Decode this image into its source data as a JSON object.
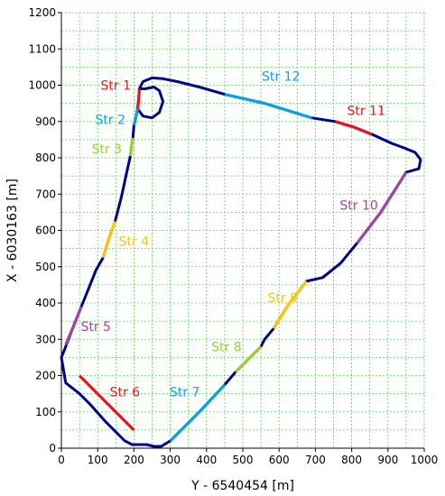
{
  "chart_data": {
    "type": "line",
    "title": "",
    "xlabel": "Y - 6540454 [m]",
    "ylabel": "X - 6030163 [m]",
    "xlim": [
      0,
      1000
    ],
    "ylim": [
      0,
      1200
    ],
    "x_ticks": [
      0,
      100,
      200,
      300,
      400,
      500,
      600,
      700,
      800,
      900,
      1000
    ],
    "y_ticks": [
      0,
      100,
      200,
      300,
      400,
      500,
      600,
      700,
      800,
      900,
      1000,
      1100,
      1200
    ],
    "x_tick_labels": [
      "0",
      "100",
      "200",
      "300",
      "400",
      "500",
      "600",
      "700",
      "800",
      "900",
      "1000"
    ],
    "y_tick_labels": [
      "0",
      "100",
      "200",
      "300",
      "400",
      "500",
      "600",
      "700",
      "800",
      "900",
      "1000",
      "1100",
      "1200"
    ],
    "grid": true,
    "colors": {
      "track": "#00008b",
      "red": "#e8141e",
      "blue": "#0aa0e6",
      "green": "#9acd32",
      "yellow": "#f5c800",
      "purple": "#a0469b"
    },
    "stretches": [
      {
        "label": "Str 1",
        "color": "#e8141e",
        "label_x": 150,
        "label_y": 1000,
        "points": [
          [
            215,
            990
          ],
          [
            213,
            960
          ],
          [
            210,
            935
          ]
        ]
      },
      {
        "label": "Str 2",
        "color": "#0aa0e6",
        "label_x": 135,
        "label_y": 905,
        "points": [
          [
            210,
            935
          ],
          [
            205,
            910
          ],
          [
            200,
            890
          ]
        ]
      },
      {
        "label": "Str 3",
        "color": "#9acd32",
        "label_x": 125,
        "label_y": 825,
        "points": [
          [
            197,
            855
          ],
          [
            193,
            830
          ],
          [
            190,
            805
          ]
        ]
      },
      {
        "label": "Str 4",
        "color": "#f5c800",
        "label_x": 200,
        "label_y": 570,
        "points": [
          [
            148,
            625
          ],
          [
            130,
            575
          ],
          [
            115,
            525
          ]
        ]
      },
      {
        "label": "Str 5",
        "color": "#a0469b",
        "label_x": 95,
        "label_y": 335,
        "points": [
          [
            55,
            390
          ],
          [
            35,
            340
          ],
          [
            12,
            285
          ]
        ]
      },
      {
        "label": "Str 6",
        "color": "#e8141e",
        "label_x": 175,
        "label_y": 155,
        "points": [
          [
            50,
            200
          ],
          [
            120,
            130
          ],
          [
            200,
            50
          ]
        ]
      },
      {
        "label": "Str 7",
        "color": "#0aa0e6",
        "label_x": 340,
        "label_y": 155,
        "points": [
          [
            300,
            20
          ],
          [
            380,
            100
          ],
          [
            450,
            175
          ]
        ]
      },
      {
        "label": "Str 8",
        "color": "#9acd32",
        "label_x": 455,
        "label_y": 280,
        "points": [
          [
            480,
            210
          ],
          [
            520,
            250
          ],
          [
            550,
            280
          ]
        ]
      },
      {
        "label": "Str 9",
        "color": "#f5c800",
        "label_x": 610,
        "label_y": 415,
        "points": [
          [
            585,
            330
          ],
          [
            625,
            395
          ],
          [
            675,
            460
          ]
        ]
      },
      {
        "label": "Str 10",
        "color": "#a0469b",
        "label_x": 820,
        "label_y": 670,
        "points": [
          [
            815,
            565
          ],
          [
            880,
            650
          ],
          [
            950,
            760
          ]
        ]
      },
      {
        "label": "Str 11",
        "color": "#e8141e",
        "label_x": 840,
        "label_y": 930,
        "points": [
          [
            755,
            900
          ],
          [
            805,
            885
          ],
          [
            855,
            865
          ]
        ]
      },
      {
        "label": "Str 12",
        "color": "#0aa0e6",
        "label_x": 605,
        "label_y": 1025,
        "points": [
          [
            450,
            975
          ],
          [
            560,
            950
          ],
          [
            690,
            910
          ]
        ]
      }
    ],
    "track": [
      [
        195,
        10
      ],
      [
        175,
        20
      ],
      [
        155,
        40
      ],
      [
        120,
        75
      ],
      [
        80,
        120
      ],
      [
        50,
        150
      ],
      [
        12,
        180
      ],
      [
        0,
        250
      ],
      [
        12,
        280
      ],
      [
        35,
        340
      ],
      [
        55,
        390
      ],
      [
        75,
        440
      ],
      [
        95,
        490
      ],
      [
        115,
        525
      ],
      [
        130,
        575
      ],
      [
        148,
        625
      ],
      [
        165,
        690
      ],
      [
        180,
        760
      ],
      [
        190,
        805
      ],
      [
        193,
        830
      ],
      [
        197,
        855
      ],
      [
        200,
        890
      ],
      [
        205,
        910
      ],
      [
        210,
        935
      ],
      [
        213,
        960
      ],
      [
        215,
        990
      ],
      [
        225,
        1010
      ],
      [
        250,
        1020
      ],
      [
        280,
        1018
      ],
      [
        320,
        1010
      ],
      [
        380,
        995
      ],
      [
        450,
        975
      ],
      [
        560,
        950
      ],
      [
        690,
        910
      ],
      [
        755,
        900
      ],
      [
        805,
        885
      ],
      [
        855,
        865
      ],
      [
        910,
        840
      ],
      [
        950,
        825
      ],
      [
        975,
        815
      ],
      [
        990,
        795
      ],
      [
        985,
        770
      ],
      [
        950,
        760
      ],
      [
        880,
        650
      ],
      [
        815,
        565
      ],
      [
        770,
        510
      ],
      [
        720,
        470
      ],
      [
        675,
        460
      ],
      [
        625,
        395
      ],
      [
        585,
        330
      ],
      [
        560,
        300
      ],
      [
        550,
        280
      ],
      [
        520,
        250
      ],
      [
        480,
        210
      ],
      [
        450,
        175
      ],
      [
        380,
        100
      ],
      [
        300,
        20
      ],
      [
        275,
        5
      ],
      [
        255,
        5
      ],
      [
        235,
        10
      ],
      [
        195,
        10
      ]
    ],
    "loop": [
      [
        215,
        990
      ],
      [
        230,
        990
      ],
      [
        255,
        995
      ],
      [
        270,
        985
      ],
      [
        280,
        955
      ],
      [
        270,
        925
      ],
      [
        250,
        910
      ],
      [
        225,
        915
      ],
      [
        210,
        935
      ]
    ]
  }
}
